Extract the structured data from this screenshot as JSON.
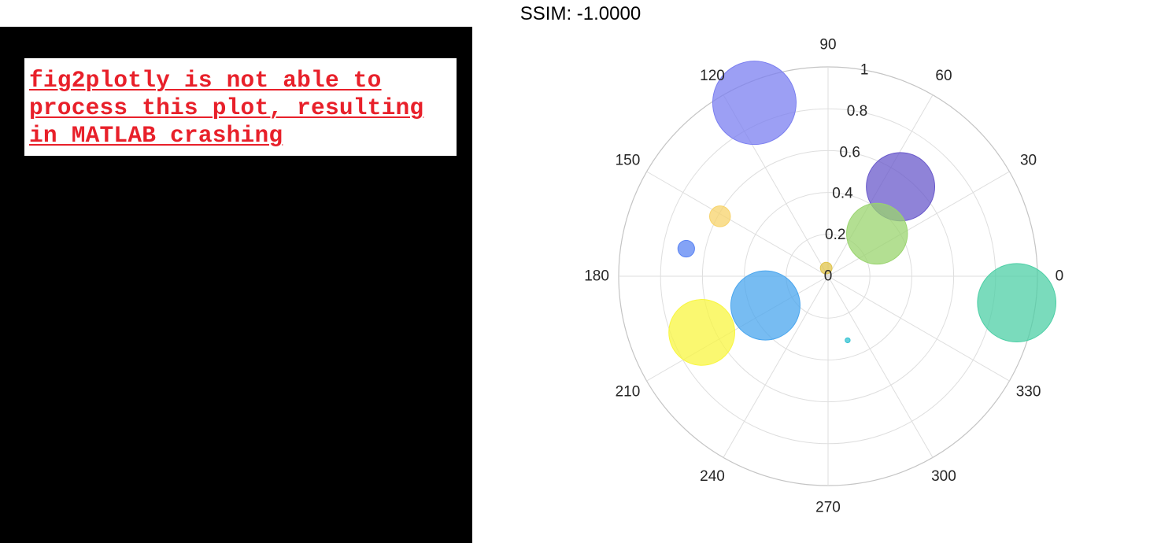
{
  "title": "SSIM: -1.0000",
  "error_message": "fig2plotly is not able to\nprocess this plot, resulting\nin MATLAB crashing",
  "colors": {
    "left_panel_bg": "#000000",
    "error_text": "#e8202a",
    "grid": "#dedede"
  },
  "chart_data": {
    "type": "scatter",
    "coordinate_system": "polar",
    "theta_unit": "degrees",
    "grid": true,
    "rlim": [
      0,
      1
    ],
    "r_ticks": [
      0,
      0.2,
      0.4,
      0.6,
      0.8,
      1
    ],
    "r_tick_labels": [
      "0",
      "0.2",
      "0.4",
      "0.6",
      "0.8",
      "1"
    ],
    "r_tick_label_angle": 80,
    "theta_ticks": [
      0,
      30,
      60,
      90,
      120,
      150,
      180,
      210,
      240,
      270,
      300,
      330
    ],
    "theta_tick_labels": [
      "0",
      "30",
      "60",
      "90",
      "120",
      "150",
      "180",
      "210",
      "240",
      "270",
      "300",
      "330"
    ],
    "points": [
      {
        "theta": 113,
        "r": 0.9,
        "size": 1.0,
        "color": "#7b7ff0"
      },
      {
        "theta": 51,
        "r": 0.55,
        "size": 0.82,
        "color": "#6a5acb"
      },
      {
        "theta": 41,
        "r": 0.31,
        "size": 0.73,
        "color": "#99d46e"
      },
      {
        "theta": 151,
        "r": 0.59,
        "size": 0.25,
        "color": "#f7d36b"
      },
      {
        "theta": 169,
        "r": 0.69,
        "size": 0.2,
        "color": "#5b84f3"
      },
      {
        "theta": 103,
        "r": 0.04,
        "size": 0.14,
        "color": "#e0c44c"
      },
      {
        "theta": 352,
        "r": 0.91,
        "size": 0.94,
        "color": "#4ecfa6"
      },
      {
        "theta": 205,
        "r": 0.33,
        "size": 0.83,
        "color": "#4aa6ee"
      },
      {
        "theta": 204,
        "r": 0.66,
        "size": 0.79,
        "color": "#f8f640"
      },
      {
        "theta": 287,
        "r": 0.32,
        "size": 0.06,
        "color": "#33c2d2"
      }
    ]
  }
}
